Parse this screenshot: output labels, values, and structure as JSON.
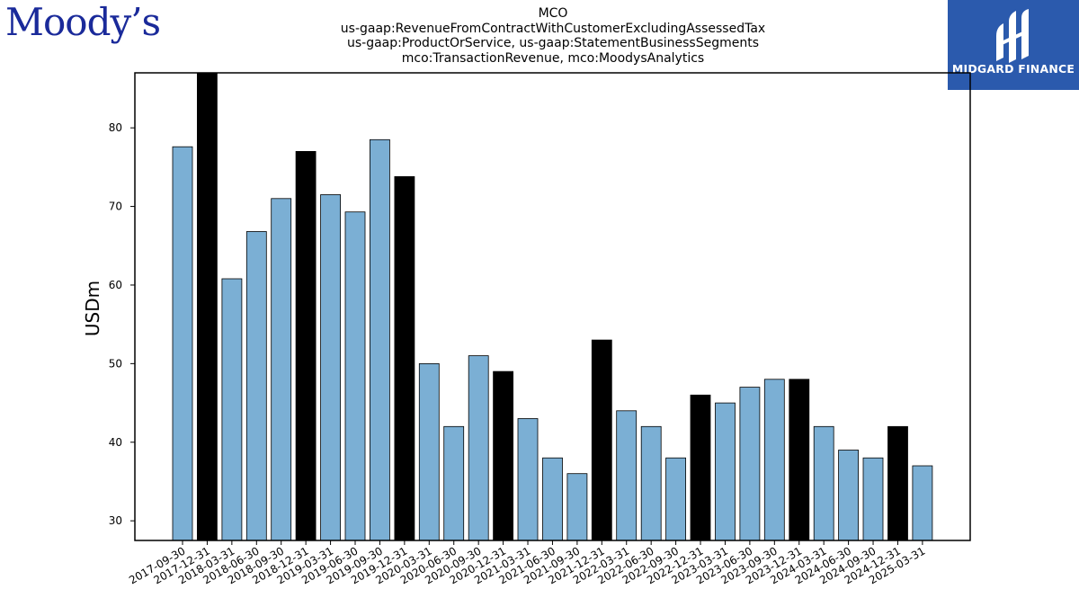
{
  "logos": {
    "left_text": "Moody’s",
    "right_text": "MIDGARD FINANCE",
    "right_bg": "#2b5aad"
  },
  "chart_data": {
    "type": "bar",
    "title_lines": [
      "MCO",
      "us-gaap:RevenueFromContractWithCustomerExcludingAssessedTax",
      "us-gaap:ProductOrService, us-gaap:StatementBusinessSegments",
      "mco:TransactionRevenue, mco:MoodysAnalytics"
    ],
    "ylabel": "USDm",
    "xlabel": "",
    "ylim": [
      27.5,
      87
    ],
    "yticks": [
      30,
      40,
      50,
      60,
      70,
      80
    ],
    "grid": false,
    "colors": {
      "default": "#7bafd4",
      "highlight": "#000000"
    },
    "categories": [
      "2017-09-30",
      "2017-12-31",
      "2018-03-31",
      "2018-06-30",
      "2018-09-30",
      "2018-12-31",
      "2019-03-31",
      "2019-06-30",
      "2019-09-30",
      "2019-12-31",
      "2020-03-31",
      "2020-06-30",
      "2020-09-30",
      "2020-12-31",
      "2021-03-31",
      "2021-06-30",
      "2021-09-30",
      "2021-12-31",
      "2022-03-31",
      "2022-06-30",
      "2022-09-30",
      "2022-12-31",
      "2023-03-31",
      "2023-06-30",
      "2023-09-30",
      "2023-12-31",
      "2024-03-31",
      "2024-06-30",
      "2024-09-30",
      "2024-12-31",
      "2025-03-31"
    ],
    "values": [
      77.6,
      87.0,
      60.8,
      66.8,
      71.0,
      77.0,
      71.5,
      69.3,
      78.5,
      73.8,
      50.0,
      42.0,
      51.0,
      49.0,
      43.0,
      38.0,
      36.0,
      53.0,
      44.0,
      42.0,
      38.0,
      46.0,
      45.0,
      47.0,
      48.0,
      48.0,
      42.0,
      39.0,
      38.0,
      42.0,
      37.0
    ],
    "highlight": [
      false,
      true,
      false,
      false,
      false,
      true,
      false,
      false,
      false,
      true,
      false,
      false,
      false,
      true,
      false,
      false,
      false,
      true,
      false,
      false,
      false,
      true,
      false,
      false,
      false,
      true,
      false,
      false,
      false,
      true,
      false
    ]
  }
}
